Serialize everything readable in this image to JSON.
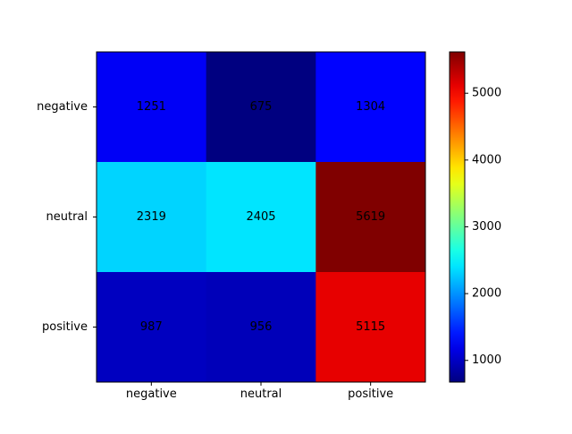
{
  "chart_data": {
    "type": "heatmap",
    "x_categories": [
      "negative",
      "neutral",
      "positive"
    ],
    "y_categories": [
      "negative",
      "neutral",
      "positive"
    ],
    "values": [
      [
        1251,
        675,
        1304
      ],
      [
        2319,
        2405,
        5619
      ],
      [
        987,
        956,
        5115
      ]
    ],
    "colormap": "jet",
    "colorbar": {
      "vmin": 675,
      "vmax": 5619,
      "ticks": [
        1000,
        2000,
        3000,
        4000,
        5000
      ],
      "tick_labels": [
        "1000",
        "2000",
        "3000",
        "4000",
        "5000"
      ]
    },
    "title": "",
    "xlabel": "",
    "ylabel": "",
    "grid": false
  }
}
